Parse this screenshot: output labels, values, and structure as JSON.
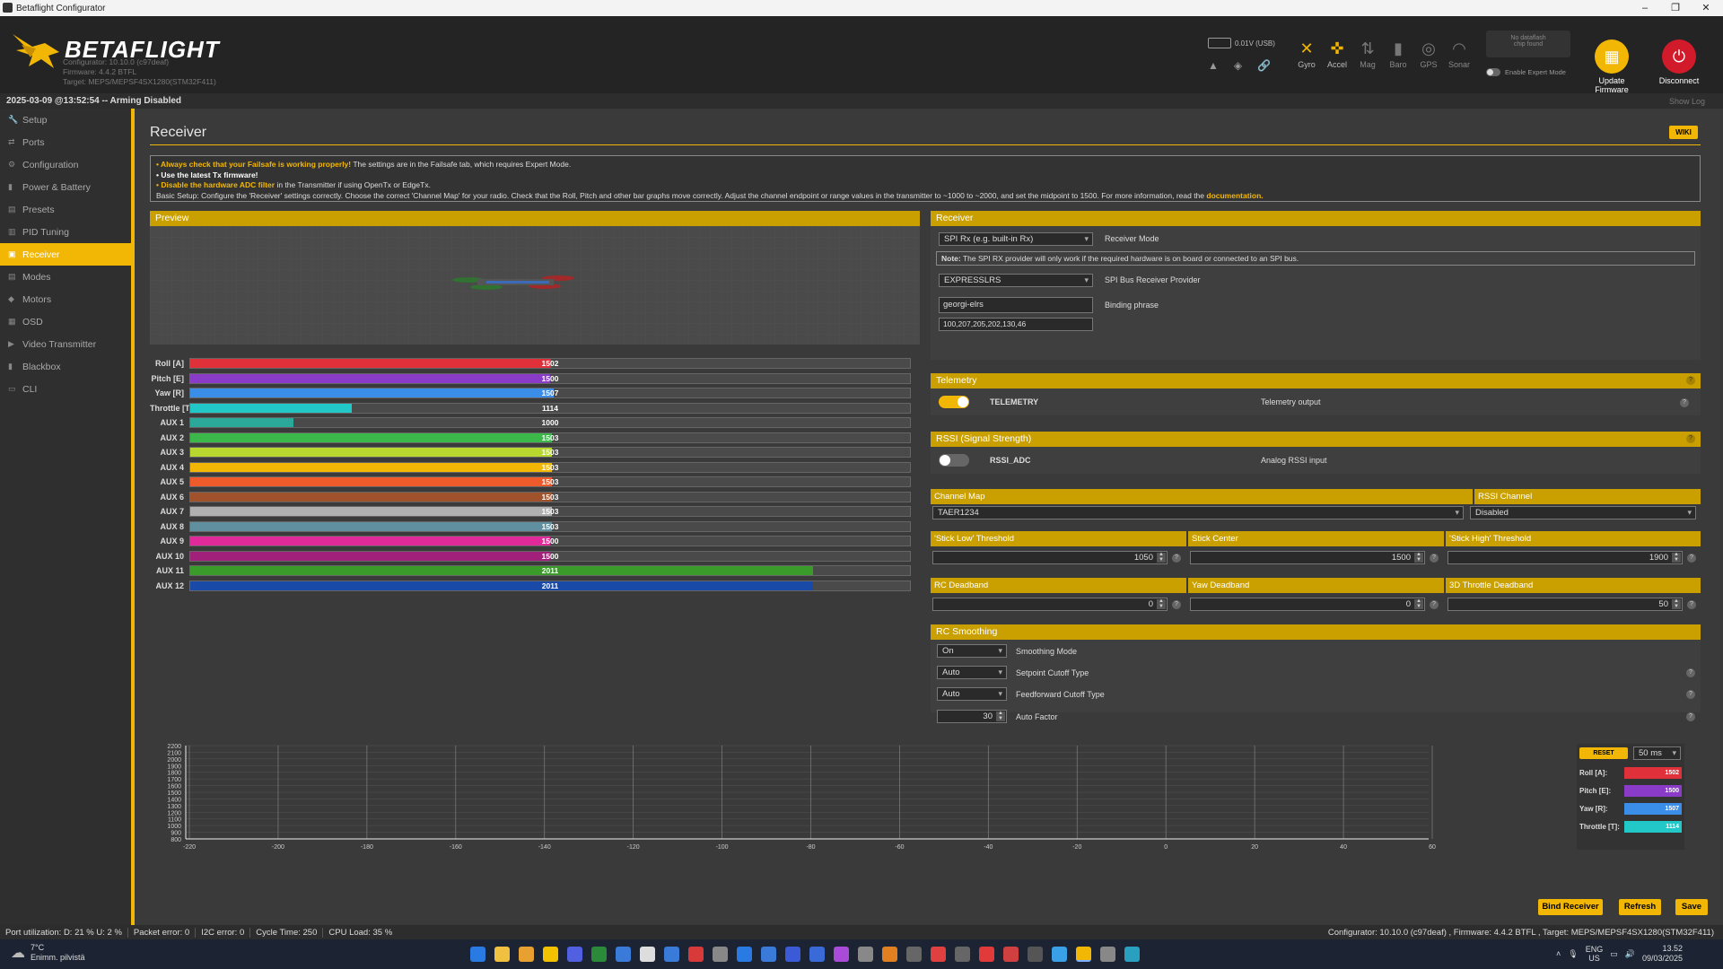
{
  "window": {
    "title": "Betaflight Configurator"
  },
  "header": {
    "brand": "BETAFLIGHT",
    "configurator": "Configurator: 10.10.0 (c97deaf)",
    "firmware": "Firmware: 4.4.2 BTFL",
    "target": "Target: MEPS/MEPSF4SX1280(STM32F411)",
    "battery": "0.01V (USB)",
    "sensors": [
      {
        "label": "Gyro",
        "icon": "gyro-icon",
        "active": true
      },
      {
        "label": "Accel",
        "icon": "accel-icon",
        "active": true
      },
      {
        "label": "Mag",
        "icon": "mag-icon",
        "active": false
      },
      {
        "label": "Baro",
        "icon": "baro-icon",
        "active": false
      },
      {
        "label": "GPS",
        "icon": "gps-icon",
        "active": false
      },
      {
        "label": "Sonar",
        "icon": "sonar-icon",
        "active": false
      }
    ],
    "dataflash": "No dataflash\nchip found",
    "expert_mode": "Enable Expert Mode",
    "update_firmware": "Update\nFirmware",
    "disconnect": "Disconnect"
  },
  "status_strip": {
    "text": "2025-03-09 @13:52:54 -- Arming Disabled",
    "show_log": "Show Log"
  },
  "sidebar": {
    "items": [
      {
        "label": "Setup",
        "icon": "wrench-icon"
      },
      {
        "label": "Ports",
        "icon": "plug-icon"
      },
      {
        "label": "Configuration",
        "icon": "gear-icon"
      },
      {
        "label": "Power & Battery",
        "icon": "battery-icon"
      },
      {
        "label": "Presets",
        "icon": "presets-icon"
      },
      {
        "label": "PID Tuning",
        "icon": "pid-icon"
      },
      {
        "label": "Receiver",
        "icon": "receiver-icon",
        "active": true
      },
      {
        "label": "Modes",
        "icon": "modes-icon"
      },
      {
        "label": "Motors",
        "icon": "motor-icon"
      },
      {
        "label": "OSD",
        "icon": "osd-icon"
      },
      {
        "label": "Video Transmitter",
        "icon": "vtx-icon"
      },
      {
        "label": "Blackbox",
        "icon": "blackbox-icon"
      },
      {
        "label": "CLI",
        "icon": "cli-icon"
      }
    ]
  },
  "page": {
    "title": "Receiver",
    "wiki": "WIKI"
  },
  "notice": {
    "l1_bold": "• Always check that your Failsafe is working properly!",
    "l1_rest": " The settings are in the Failsafe tab, which requires Expert Mode.",
    "l2": "• Use the latest Tx firmware!",
    "l3_bold": "• Disable the hardware ADC filter",
    "l3_rest": " in the Transmitter if using OpenTx or EdgeTx.",
    "l4": "Basic Setup: Configure the 'Receiver' settings correctly. Choose the correct 'Channel Map' for your radio. Check that the Roll, Pitch and other bar graphs move correctly. Adjust the channel endpoint or range values in the transmitter to ~1000 to ~2000, and set the midpoint to 1500. For more information, read the ",
    "l4_link": "documentation."
  },
  "preview": {
    "title": "Preview"
  },
  "channels": [
    {
      "label": "Roll [A]",
      "value": 1502,
      "color": "#e0303a"
    },
    {
      "label": "Pitch [E]",
      "value": 1500,
      "color": "#8a3cc8"
    },
    {
      "label": "Yaw [R]",
      "value": 1507,
      "color": "#3a8ee8"
    },
    {
      "label": "Throttle [T]",
      "value": 1114,
      "color": "#22c7c7"
    },
    {
      "label": "AUX 1",
      "value": 1000,
      "color": "#2aa89a"
    },
    {
      "label": "AUX 2",
      "value": 1503,
      "color": "#3cb84a"
    },
    {
      "label": "AUX 3",
      "value": 1503,
      "color": "#b8d830"
    },
    {
      "label": "AUX 4",
      "value": 1503,
      "color": "#f2b705"
    },
    {
      "label": "AUX 5",
      "value": 1503,
      "color": "#ee5a2a"
    },
    {
      "label": "AUX 6",
      "value": 1503,
      "color": "#a0522d"
    },
    {
      "label": "AUX 7",
      "value": 1503,
      "color": "#b0b0b0"
    },
    {
      "label": "AUX 8",
      "value": 1503,
      "color": "#6090a0"
    },
    {
      "label": "AUX 9",
      "value": 1500,
      "color": "#e02a9a"
    },
    {
      "label": "AUX 10",
      "value": 1500,
      "color": "#a0207a"
    },
    {
      "label": "AUX 11",
      "value": 2011,
      "color": "#3a9a2a"
    },
    {
      "label": "AUX 12",
      "value": 2011,
      "color": "#1a4aa8"
    }
  ],
  "receiver": {
    "title": "Receiver",
    "mode": "SPI Rx (e.g. built-in Rx)",
    "mode_label": "Receiver Mode",
    "note_bold": "Note:",
    "note": " The SPI RX provider will only work if the required hardware is on board or connected to an SPI bus.",
    "provider": "EXPRESSLRS",
    "provider_label": "SPI Bus Receiver Provider",
    "binding": "georgi-elrs",
    "binding_label": "Binding phrase",
    "uid": "100,207,205,202,130,46"
  },
  "telemetry": {
    "title": "Telemetry",
    "name": "TELEMETRY",
    "desc": "Telemetry output",
    "enabled": true
  },
  "rssi": {
    "title": "RSSI (Signal Strength)",
    "name": "RSSI_ADC",
    "desc": "Analog RSSI input",
    "enabled": false
  },
  "channel_map": {
    "label": "Channel Map",
    "value": "TAER1234",
    "rssi_label": "RSSI Channel",
    "rssi_value": "Disabled"
  },
  "thresholds": {
    "low_label": "'Stick Low' Threshold",
    "low": "1050",
    "center_label": "Stick Center",
    "center": "1500",
    "high_label": "'Stick High' Threshold",
    "high": "1900"
  },
  "deadband": {
    "rc_label": "RC Deadband",
    "rc": "0",
    "yaw_label": "Yaw Deadband",
    "yaw": "0",
    "thr_label": "3D Throttle Deadband",
    "thr": "50"
  },
  "smoothing": {
    "title": "RC Smoothing",
    "mode": "On",
    "mode_label": "Smoothing Mode",
    "setpoint": "Auto",
    "setpoint_label": "Setpoint Cutoff Type",
    "ff": "Auto",
    "ff_label": "Feedforward Cutoff Type",
    "auto": "30",
    "auto_label": "Auto Factor"
  },
  "graph": {
    "y_ticks": [
      "2200",
      "2100",
      "2000",
      "1900",
      "1800",
      "1700",
      "1600",
      "1500",
      "1400",
      "1300",
      "1200",
      "1100",
      "1000",
      "900",
      "800"
    ],
    "x_ticks": [
      "-220",
      "-200",
      "-180",
      "-160",
      "-140",
      "-120",
      "-100",
      "-80",
      "-60",
      "-40",
      "-20",
      "0",
      "20",
      "40",
      "60"
    ],
    "reset": "RESET",
    "interval": "50 ms",
    "legend": [
      {
        "label": "Roll [A]:",
        "value": "1502",
        "color": "#e0303a"
      },
      {
        "label": "Pitch [E]:",
        "value": "1500",
        "color": "#8a3cc8"
      },
      {
        "label": "Yaw [R]:",
        "value": "1507",
        "color": "#3a8ee8"
      },
      {
        "label": "Throttle [T]:",
        "value": "1114",
        "color": "#22c7c7"
      }
    ]
  },
  "buttons": {
    "bind": "Bind Receiver",
    "refresh": "Refresh",
    "save": "Save"
  },
  "statusbar": {
    "port": "Port utilization: D: 21 % U: 2 %",
    "packet": "Packet error: 0",
    "i2c": "I2C error: 0",
    "cycle": "Cycle Time: 250",
    "cpu": "CPU Load: 35 %",
    "right": "Configurator: 10.10.0 (c97deaf) , Firmware: 4.4.2 BTFL , Target: MEPS/MEPSF4SX1280(STM32F411)"
  },
  "taskbar": {
    "weather_temp": "7°C",
    "weather_desc": "Enimm. pilvistä",
    "lang": "ENG",
    "region": "US",
    "time": "13.52",
    "date": "09/03/2025"
  }
}
